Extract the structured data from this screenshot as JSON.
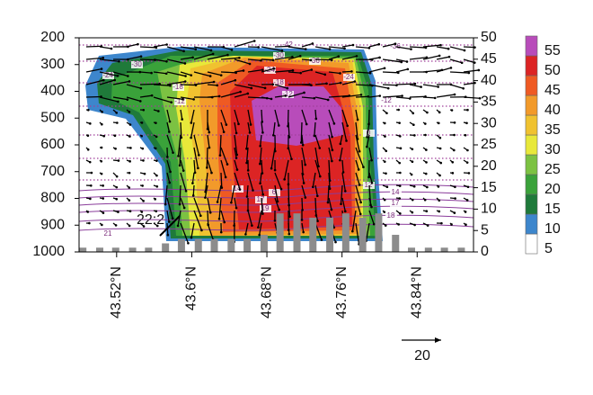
{
  "chart_data": {
    "type": "cross-section",
    "xlim": [
      43.48,
      43.9
    ],
    "xticks": [
      {
        "value": 43.52,
        "label": "43.52°N"
      },
      {
        "value": 43.6,
        "label": "43.6°N"
      },
      {
        "value": 43.68,
        "label": "43.68°N"
      },
      {
        "value": 43.76,
        "label": "43.76°N"
      },
      {
        "value": 43.84,
        "label": "43.84°N"
      }
    ],
    "ylim": [
      1000,
      200
    ],
    "yticks": [
      200,
      300,
      400,
      500,
      600,
      700,
      800,
      900,
      1000
    ],
    "y2lim": [
      0,
      50
    ],
    "y2ticks": [
      0,
      5,
      10,
      15,
      20,
      25,
      30,
      35,
      40,
      45,
      50
    ],
    "levels": [
      5,
      10,
      15,
      20,
      25,
      30,
      35,
      40,
      45,
      50,
      55
    ],
    "colors": [
      "#ffffff",
      "#3d86cc",
      "#1f7a3a",
      "#3aa23a",
      "#7cc242",
      "#e8e83a",
      "#f0c230",
      "#f29a2a",
      "#ef5a23",
      "#dc2424",
      "#b84cba"
    ],
    "series": [
      {
        "axis": "y2",
        "color": "#8c8c8c",
        "x": [
          43.484,
          43.502,
          43.519,
          43.537,
          43.554,
          43.572,
          43.589,
          43.607,
          43.624,
          43.642,
          43.659,
          43.677,
          43.694,
          43.712,
          43.729,
          43.747,
          43.764,
          43.782,
          43.799,
          43.817,
          43.834,
          43.852,
          43.869,
          43.887
        ],
        "values": [
          1,
          1,
          1,
          1,
          1,
          2,
          3,
          3,
          3,
          3,
          3,
          4,
          9,
          9,
          8,
          8,
          9,
          8,
          9,
          4,
          1,
          1,
          1,
          1
        ]
      }
    ],
    "isotherm_labels": [
      "-42",
      "-36",
      "-30",
      "-24",
      "-18",
      "-12",
      "-6",
      "0",
      "6",
      "12",
      "14",
      "17",
      "18",
      "19",
      "21"
    ],
    "annotations": [
      "22:20",
      "C"
    ],
    "reference_vector": 20
  }
}
